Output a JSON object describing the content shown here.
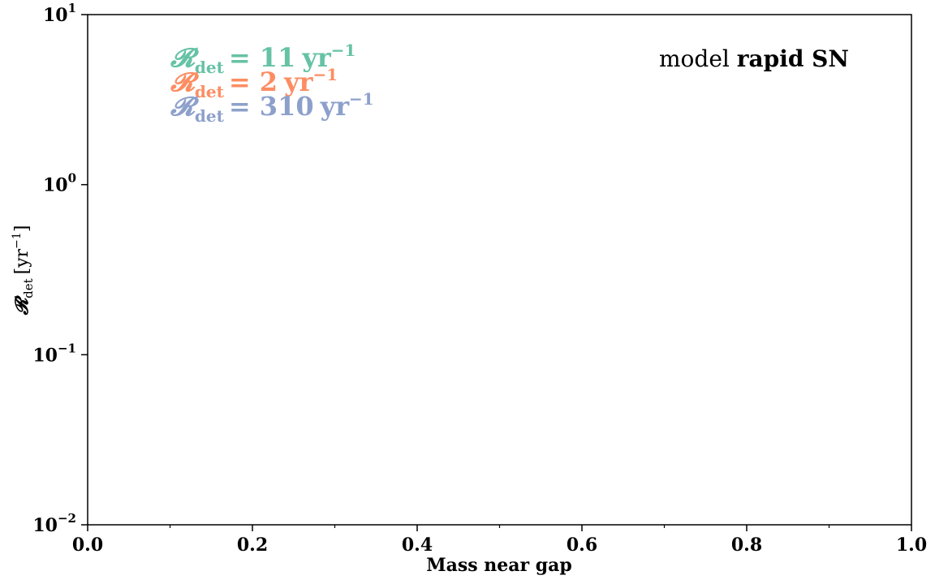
{
  "chart_data": {
    "type": "line",
    "xlabel": "Mass near gap",
    "ylabel": "𝓡",
    "ylabel_sub": "det",
    "ylabel_unit": "[yr",
    "ylabel_unit_exp": "−1",
    "ylabel_unit_close": "]",
    "xlim": [
      0.0,
      1.0
    ],
    "ylim": [
      0.01,
      10
    ],
    "yscale": "log",
    "grid": false,
    "x_ticks": [
      0.0,
      0.2,
      0.4,
      0.6,
      0.8,
      1.0
    ],
    "x_tick_labels": [
      "0.0",
      "0.2",
      "0.4",
      "0.6",
      "0.8",
      "1.0"
    ],
    "x_minor_ticks": [
      0.1,
      0.3,
      0.5,
      0.7,
      0.9
    ],
    "y_ticks": [
      0.01,
      0.1,
      1,
      10
    ],
    "y_tick_labels": [
      {
        "base": "10",
        "exp": "−2"
      },
      {
        "base": "10",
        "exp": "−1"
      },
      {
        "base": "10",
        "exp": "0"
      },
      {
        "base": "10",
        "exp": "1"
      }
    ],
    "series": [],
    "annotations": {
      "rates": [
        {
          "symbol": "𝓡",
          "sub": "det",
          "eq": "= 11",
          "unit": "yr",
          "exp": "−1",
          "color": "#66c2a5"
        },
        {
          "symbol": "𝓡",
          "sub": "det",
          "eq": "= 2",
          "unit": "yr",
          "exp": "−1",
          "color": "#fc8d62"
        },
        {
          "symbol": "𝓡",
          "sub": "det",
          "eq": "= 310",
          "unit": "yr",
          "exp": "−1",
          "color": "#8da0cb"
        }
      ],
      "model_prefix": "model",
      "model_name": "rapid SN"
    }
  }
}
